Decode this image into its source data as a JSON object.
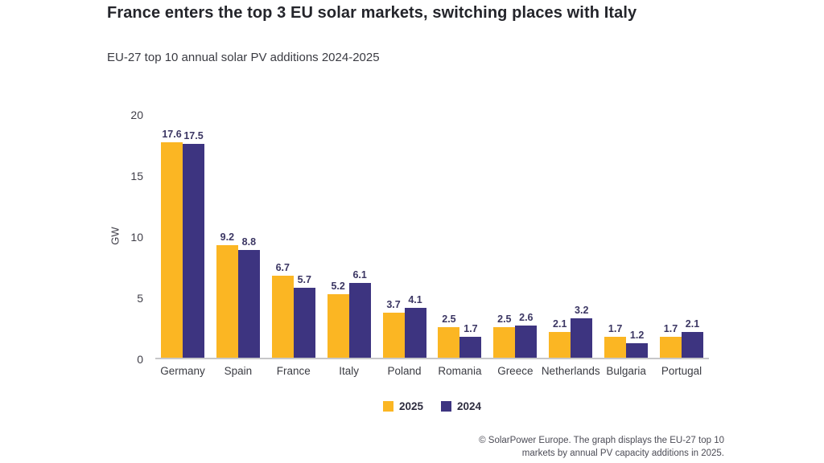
{
  "header": {
    "title": "France enters the top 3 EU solar markets, switching places with Italy",
    "subtitle": "EU-27 top 10 annual solar PV additions 2024-2025"
  },
  "chart_data": {
    "type": "bar",
    "categories": [
      "Germany",
      "Spain",
      "France",
      "Italy",
      "Poland",
      "Romania",
      "Greece",
      "Netherlands",
      "Bulgaria",
      "Portugal"
    ],
    "series": [
      {
        "name": "2025",
        "color": "#FBB623",
        "values": [
          17.6,
          9.2,
          6.7,
          5.2,
          3.7,
          2.5,
          2.5,
          2.1,
          1.7,
          1.7
        ]
      },
      {
        "name": "2024",
        "color": "#3D3480",
        "values": [
          17.5,
          8.8,
          5.7,
          6.1,
          4.1,
          1.7,
          2.6,
          3.2,
          1.2,
          2.1
        ]
      }
    ],
    "title": "EU-27 top 10 annual solar PV additions 2024-2025",
    "xlabel": "",
    "ylabel": "GW",
    "ylim": [
      0,
      20
    ],
    "yticks": [
      0,
      5,
      10,
      15,
      20
    ],
    "grid": false,
    "legend_position": "bottom-center",
    "value_labels": true
  },
  "footer": {
    "line1": "© SolarPower Europe. The graph displays the EU-27 top 10",
    "line2": "markets by annual PV capacity additions in 2025."
  },
  "colors": {
    "bar_2025": "#FBB623",
    "bar_2024": "#3D3480",
    "axis_line": "#C7C7C9",
    "title_text": "#24252B",
    "value_text": "#3B3663",
    "background": "#FFFFFF"
  }
}
